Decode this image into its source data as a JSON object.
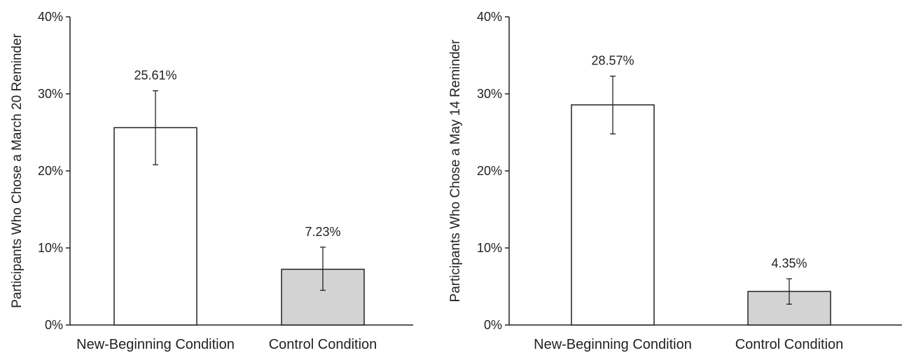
{
  "chart_data": [
    {
      "type": "bar",
      "ylabel": "Participants Who Chose a March 20 Reminder",
      "ylim": [
        0,
        40
      ],
      "yticks": [
        "0%",
        "10%",
        "20%",
        "30%",
        "40%"
      ],
      "categories": [
        "New-Beginning Condition",
        "Control Condition"
      ],
      "values": [
        25.61,
        7.23
      ],
      "data_labels": [
        "25.61%",
        "7.23%"
      ],
      "error": [
        [
          20.8,
          30.4
        ],
        [
          4.5,
          10.1
        ]
      ],
      "bar_colors": [
        "#ffffff",
        "#d3d3d3"
      ],
      "grid": false,
      "legend": "none"
    },
    {
      "type": "bar",
      "ylabel": "Participants Who Chose a May 14 Reminder",
      "ylim": [
        0,
        40
      ],
      "yticks": [
        "0%",
        "10%",
        "20%",
        "30%",
        "40%"
      ],
      "categories": [
        "New-Beginning Condition",
        "Control Condition"
      ],
      "values": [
        28.57,
        4.35
      ],
      "data_labels": [
        "28.57%",
        "4.35%"
      ],
      "error": [
        [
          24.8,
          32.3
        ],
        [
          2.7,
          6.0
        ]
      ],
      "bar_colors": [
        "#ffffff",
        "#d3d3d3"
      ],
      "grid": false,
      "legend": "none"
    }
  ]
}
